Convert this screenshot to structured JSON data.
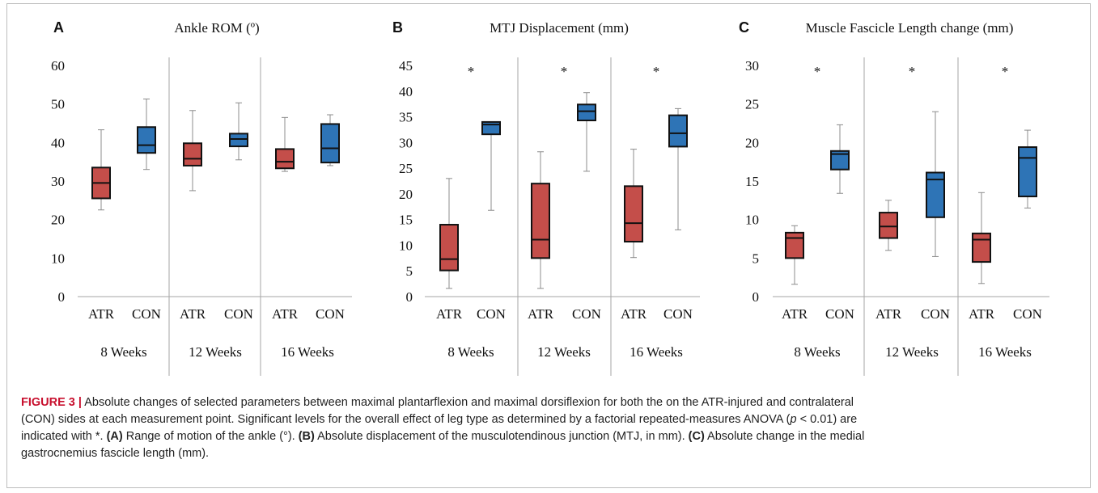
{
  "colors": {
    "atr": "#c44e4a",
    "con": "#2e74b6",
    "divider": "#a6a6a6",
    "whisker": "#8c8c8c",
    "box_edge": "#111111"
  },
  "chart_data": [
    {
      "type": "box",
      "panel": "A",
      "title": "Ankle ROM (º)",
      "ylim": [
        0,
        60
      ],
      "yticks": [
        0,
        10,
        20,
        30,
        40,
        50,
        60
      ],
      "tick_labels": [
        "0",
        "10",
        "20",
        "30",
        "40",
        "50",
        "60"
      ],
      "groups": [
        "8 Weeks",
        "12 Weeks",
        "16 Weeks"
      ],
      "categories": [
        "ATR",
        "CON"
      ],
      "stars": [],
      "boxes": [
        {
          "group": "8 Weeks",
          "category": "ATR",
          "min": 22.5,
          "q1": 25.5,
          "median": 29.5,
          "q3": 33.5,
          "max": 43.3
        },
        {
          "group": "8 Weeks",
          "category": "CON",
          "min": 33,
          "q1": 37.3,
          "median": 39.3,
          "q3": 44,
          "max": 51.3
        },
        {
          "group": "12 Weeks",
          "category": "ATR",
          "min": 27.5,
          "q1": 34,
          "median": 35.8,
          "q3": 39.8,
          "max": 48.3
        },
        {
          "group": "12 Weeks",
          "category": "CON",
          "min": 35.5,
          "q1": 39,
          "median": 40.9,
          "q3": 42.3,
          "max": 50.3
        },
        {
          "group": "16 Weeks",
          "category": "ATR",
          "min": 32.5,
          "q1": 33.3,
          "median": 35,
          "q3": 38.3,
          "max": 46.5
        },
        {
          "group": "16 Weeks",
          "category": "CON",
          "min": 34,
          "q1": 34.8,
          "median": 38.5,
          "q3": 44.8,
          "max": 47.2
        }
      ]
    },
    {
      "type": "box",
      "panel": "B",
      "title": "MTJ Displacement (mm)",
      "ylim": [
        0,
        45
      ],
      "yticks": [
        0,
        5,
        10,
        15,
        20,
        25,
        30,
        35,
        40,
        45
      ],
      "tick_labels": [
        "0",
        "5",
        "10",
        "15",
        "20",
        "25",
        "30",
        "35",
        "40",
        "45"
      ],
      "groups": [
        "8 Weeks",
        "12 Weeks",
        "16 Weeks"
      ],
      "categories": [
        "ATR",
        "CON"
      ],
      "stars": [
        "*",
        "*",
        "*"
      ],
      "boxes": [
        {
          "group": "8 Weeks",
          "category": "ATR",
          "min": 1.6,
          "q1": 5.1,
          "median": 7.3,
          "q3": 14,
          "max": 23
        },
        {
          "group": "8 Weeks",
          "category": "CON",
          "min": 16.8,
          "q1": 31.6,
          "median": 33.5,
          "q3": 34,
          "max": 34
        },
        {
          "group": "12 Weeks",
          "category": "ATR",
          "min": 1.6,
          "q1": 7.5,
          "median": 11.1,
          "q3": 22,
          "max": 28.2
        },
        {
          "group": "12 Weeks",
          "category": "CON",
          "min": 24.4,
          "q1": 34.3,
          "median": 36.1,
          "q3": 37.4,
          "max": 39.7
        },
        {
          "group": "16 Weeks",
          "category": "ATR",
          "min": 7.6,
          "q1": 10.7,
          "median": 14.3,
          "q3": 21.5,
          "max": 28.7
        },
        {
          "group": "16 Weeks",
          "category": "CON",
          "min": 13,
          "q1": 29.2,
          "median": 31.8,
          "q3": 35.3,
          "max": 36.6
        }
      ]
    },
    {
      "type": "box",
      "panel": "C",
      "title": "Muscle Fascicle Length change (mm)",
      "ylim": [
        0,
        30
      ],
      "yticks": [
        0,
        5,
        10,
        15,
        20,
        25,
        30
      ],
      "tick_labels": [
        "0",
        "5",
        "10",
        "15",
        "20",
        "25",
        "30"
      ],
      "groups": [
        "8 Weeks",
        "12 Weeks",
        "16 Weeks"
      ],
      "categories": [
        "ATR",
        "CON"
      ],
      "stars": [
        "*",
        "*",
        "*"
      ],
      "boxes": [
        {
          "group": "8 Weeks",
          "category": "ATR",
          "min": 1.6,
          "q1": 5,
          "median": 7.6,
          "q3": 8.3,
          "max": 9.2
        },
        {
          "group": "8 Weeks",
          "category": "CON",
          "min": 13.4,
          "q1": 16.5,
          "median": 18.5,
          "q3": 18.9,
          "max": 22.3
        },
        {
          "group": "12 Weeks",
          "category": "ATR",
          "min": 6,
          "q1": 7.6,
          "median": 9.1,
          "q3": 10.9,
          "max": 12.5
        },
        {
          "group": "12 Weeks",
          "category": "CON",
          "min": 5.2,
          "q1": 10.3,
          "median": 15.2,
          "q3": 16.1,
          "max": 24
        },
        {
          "group": "16 Weeks",
          "category": "ATR",
          "min": 1.7,
          "q1": 4.5,
          "median": 7.4,
          "q3": 8.2,
          "max": 13.5
        },
        {
          "group": "16 Weeks",
          "category": "CON",
          "min": 11.5,
          "q1": 13,
          "median": 18,
          "q3": 19.4,
          "max": 21.6
        }
      ]
    }
  ],
  "caption": {
    "label": "FIGURE 3 |",
    "line1": "Absolute changes of selected parameters between maximal plantarflexion and maximal dorsiflexion for both the on the ATR-injured and contralateral",
    "line2": "(CON) sides at each measurement point. Significant levels for the overall effect of leg type as determined by a factorial repeated-measures ANOVA (",
    "line2_p": "p",
    "line2_end": " < 0.01) are",
    "line3_start": "indicated with *. ",
    "a_label": "(A)",
    "a_text": " Range of motion of the ankle (°). ",
    "b_label": "(B)",
    "b_text": " Absolute displacement of the musculotendinous junction (MTJ, in mm). ",
    "c_label": "(C)",
    "c_text": " Absolute change in the medial",
    "line4": "gastrocnemius fascicle length (mm)."
  }
}
